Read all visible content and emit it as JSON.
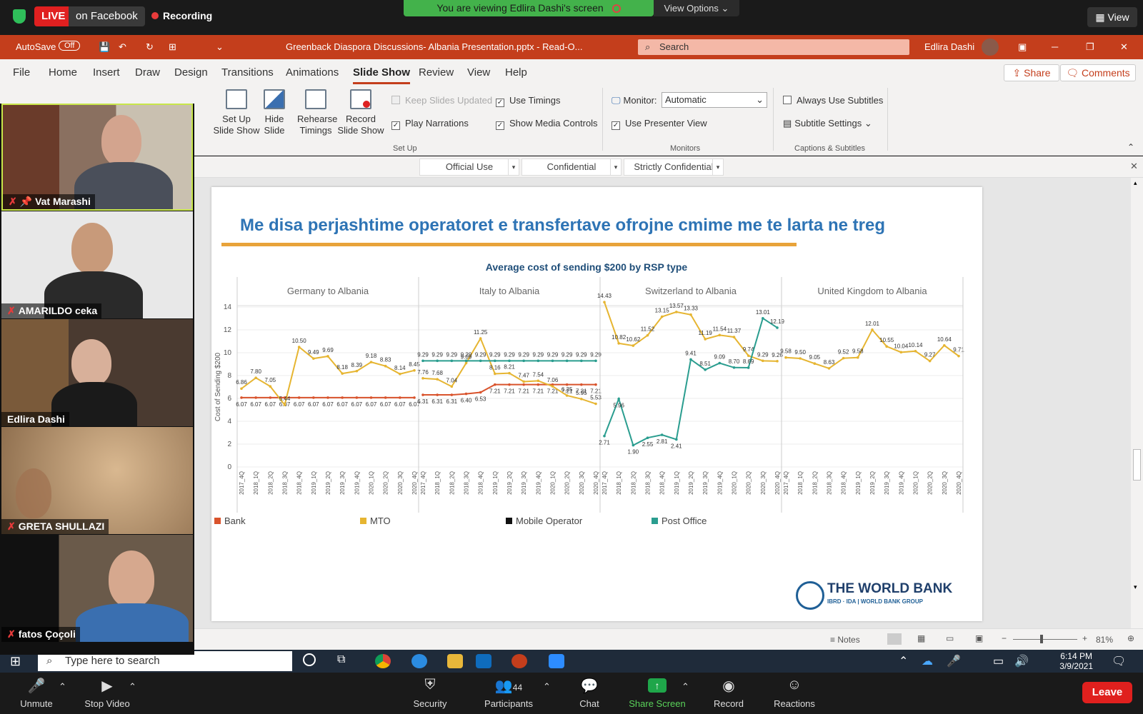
{
  "zoom_top": {
    "live": "LIVE",
    "live_target": "on Facebook",
    "recording": "Recording",
    "viewing_banner": "You are viewing Edlira Dashi's screen",
    "view_options": "View Options",
    "view": "View"
  },
  "titlebar": {
    "autosave": "AutoSave",
    "autosave_state": "Off",
    "doc_title": "Greenback Diaspora Discussions- Albania Presentation.pptx  -  Read-O...",
    "search": "Search",
    "user": "Edlira Dashi"
  },
  "menu": {
    "tabs": [
      "File",
      "Home",
      "Insert",
      "Draw",
      "Design",
      "Transitions",
      "Animations",
      "Slide Show",
      "Review",
      "View",
      "Help"
    ],
    "active": "Slide Show",
    "share": "Share",
    "comments": "Comments"
  },
  "ribbon": {
    "setup_show": "Set Up Slide Show",
    "hide_slide": "Hide Slide",
    "rehearse": "Rehearse Timings",
    "record": "Record Slide Show",
    "keep_updated": "Keep Slides Updated",
    "use_timings": "Use Timings",
    "play_narrations": "Play Narrations",
    "show_media": "Show Media Controls",
    "group_setup": "Set Up",
    "monitor_label": "Monitor:",
    "monitor_value": "Automatic",
    "presenter_view": "Use Presenter View",
    "group_monitors": "Monitors",
    "always_subtitles": "Always Use Subtitles",
    "subtitle_settings": "Subtitle Settings",
    "group_captions": "Captions & Subtitles"
  },
  "sensitivity": [
    "Official Use",
    "Confidential",
    "Strictly Confidential"
  ],
  "slide": {
    "title": "Me disa perjashtime operatoret e transfertave ofrojne cmime me te larta ne treg",
    "logo_name": "THE WORLD BANK",
    "logo_sub": "IBRD · IDA | WORLD BANK GROUP"
  },
  "chart_data": {
    "type": "line",
    "title": "Average cost of sending $200 by RSP type",
    "ylabel": "Cost of Sending $200",
    "ylim": [
      0,
      14
    ],
    "yticks": [
      0,
      2,
      4,
      6,
      8,
      10,
      12,
      14
    ],
    "x": [
      "2017_4Q",
      "2018_1Q",
      "2018_2Q",
      "2018_3Q",
      "2018_4Q",
      "2019_1Q",
      "2019_2Q",
      "2019_3Q",
      "2019_4Q",
      "2020_1Q",
      "2020_2Q",
      "2020_3Q",
      "2020_4Q"
    ],
    "legend": [
      "Bank",
      "MTO",
      "Mobile Operator",
      "Post Office"
    ],
    "colors": {
      "Bank": "#d9532c",
      "MTO": "#e6b531",
      "Mobile Operator": "#111111",
      "Post Office": "#2a9d8f"
    },
    "panels": [
      {
        "name": "Germany to Albania",
        "series": [
          {
            "name": "Bank",
            "values": [
              6.07,
              6.07,
              6.07,
              6.07,
              6.07,
              6.07,
              6.07,
              6.07,
              6.07,
              6.07,
              6.07,
              6.07,
              6.07
            ]
          },
          {
            "name": "MTO",
            "values": [
              6.86,
              7.8,
              7.05,
              5.44,
              10.5,
              9.49,
              9.69,
              8.18,
              8.39,
              9.18,
              8.83,
              8.14,
              8.45
            ]
          }
        ]
      },
      {
        "name": "Italy to Albania",
        "series": [
          {
            "name": "Bank",
            "values": [
              6.31,
              6.31,
              6.31,
              6.4,
              6.53,
              7.21,
              7.21,
              7.21,
              7.21,
              7.21,
              7.21,
              7.21,
              7.21
            ]
          },
          {
            "name": "MTO",
            "values": [
              7.76,
              7.68,
              7.04,
              9.09,
              11.25,
              8.16,
              8.21,
              7.47,
              7.54,
              7.06,
              6.25,
              5.95,
              5.53
            ]
          },
          {
            "name": "Post Office",
            "values": [
              9.29,
              9.29,
              9.29,
              9.29,
              9.29,
              9.29,
              9.29,
              9.29,
              9.29,
              9.29,
              9.29,
              9.29,
              9.29
            ]
          }
        ]
      },
      {
        "name": "Switzerland to Albania",
        "series": [
          {
            "name": "MTO",
            "values": [
              14.43,
              10.82,
              10.62,
              11.52,
              13.15,
              13.57,
              13.33,
              11.19,
              11.54,
              11.37,
              9.74,
              9.29,
              9.26
            ]
          },
          {
            "name": "Post Office",
            "values": [
              2.71,
              5.96,
              1.9,
              2.55,
              2.81,
              2.41,
              9.41,
              8.51,
              9.09,
              8.7,
              8.69,
              13.01,
              12.19
            ]
          }
        ]
      },
      {
        "name": "United Kingdom to Albania",
        "series": [
          {
            "name": "MTO",
            "values": [
              9.58,
              9.5,
              9.05,
              8.63,
              9.52,
              9.58,
              12.01,
              10.55,
              10.04,
              10.14,
              9.27,
              10.64,
              9.71
            ]
          }
        ]
      }
    ]
  },
  "statusbar": {
    "notes": "Notes",
    "zoom": "81%"
  },
  "taskbar": {
    "search": "Type here to search",
    "time": "6:14 PM",
    "date": "3/9/2021"
  },
  "participants": [
    {
      "name": "Vat Marashi"
    },
    {
      "name": "AMARILDO ceka"
    },
    {
      "name": "Edlira Dashi"
    },
    {
      "name": "GRETA SHULLAZI"
    },
    {
      "name": "fatos Çoçoli"
    }
  ],
  "zoom_bottom": {
    "unmute": "Unmute",
    "stop_video": "Stop Video",
    "security": "Security",
    "participants": "Participants",
    "participants_count": "44",
    "chat": "Chat",
    "share_screen": "Share Screen",
    "record": "Record",
    "reactions": "Reactions",
    "leave": "Leave"
  }
}
